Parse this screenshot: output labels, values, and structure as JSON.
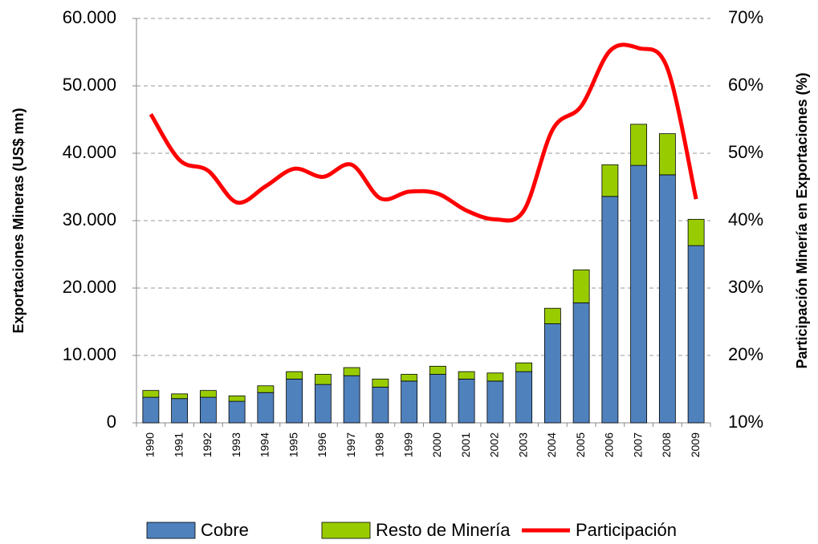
{
  "chart_data": {
    "type": "bar",
    "categories": [
      "1990",
      "1991",
      "1992",
      "1993",
      "1994",
      "1995",
      "1996",
      "1997",
      "1998",
      "1999",
      "2000",
      "2001",
      "2002",
      "2003",
      "2004",
      "2005",
      "2006",
      "2007",
      "2008",
      "2009"
    ],
    "series": [
      {
        "name": "Cobre",
        "color": "#4f81bd",
        "values": [
          3800,
          3600,
          3800,
          3200,
          4500,
          6500,
          5700,
          7000,
          5300,
          6200,
          7200,
          6500,
          6200,
          7600,
          14700,
          17800,
          33600,
          38200,
          36800,
          26300
        ]
      },
      {
        "name": "Resto de Minería",
        "color": "#99cc00",
        "values": [
          1000,
          700,
          1000,
          800,
          1000,
          1100,
          1500,
          1200,
          1200,
          1000,
          1200,
          1100,
          1200,
          1300,
          2300,
          4900,
          4700,
          6100,
          6100,
          3900
        ]
      },
      {
        "name": "Participación",
        "color": "#ff0000",
        "axis": "y2",
        "type": "line",
        "values": [
          55.8,
          49,
          47.4,
          42.7,
          45.1,
          47.7,
          46.5,
          48.3,
          43.3,
          44.3,
          44.0,
          41.5,
          40.2,
          41.5,
          53.5,
          57.0,
          65.2,
          65.6,
          62.6,
          43.2
        ]
      }
    ],
    "ylabel": "Exportaciones Mineras (US$ mn)",
    "y2label": "Participación Minería en Exportaciones (%)",
    "ylim": [
      0,
      60000
    ],
    "yticks": [
      0,
      {
        "value": 10000,
        "label": "10.000"
      },
      {
        "value": 20000,
        "label": "20.000"
      },
      {
        "value": 30000,
        "label": "30.000"
      },
      {
        "value": 40000,
        "label": "40.000"
      },
      {
        "value": 50000,
        "label": "50.000"
      },
      {
        "value": 60000,
        "label": "60.000"
      }
    ],
    "y2lim": [
      10,
      70
    ],
    "y2ticks": [
      {
        "value": 10,
        "label": "10%"
      },
      {
        "value": 20,
        "label": "20%"
      },
      {
        "value": 30,
        "label": "30%"
      },
      {
        "value": 40,
        "label": "40%"
      },
      {
        "value": 50,
        "label": "50%"
      },
      {
        "value": 60,
        "label": "60%"
      },
      {
        "value": 70,
        "label": "70%"
      }
    ],
    "stacked": true,
    "grid": true,
    "legend": "bottom"
  }
}
